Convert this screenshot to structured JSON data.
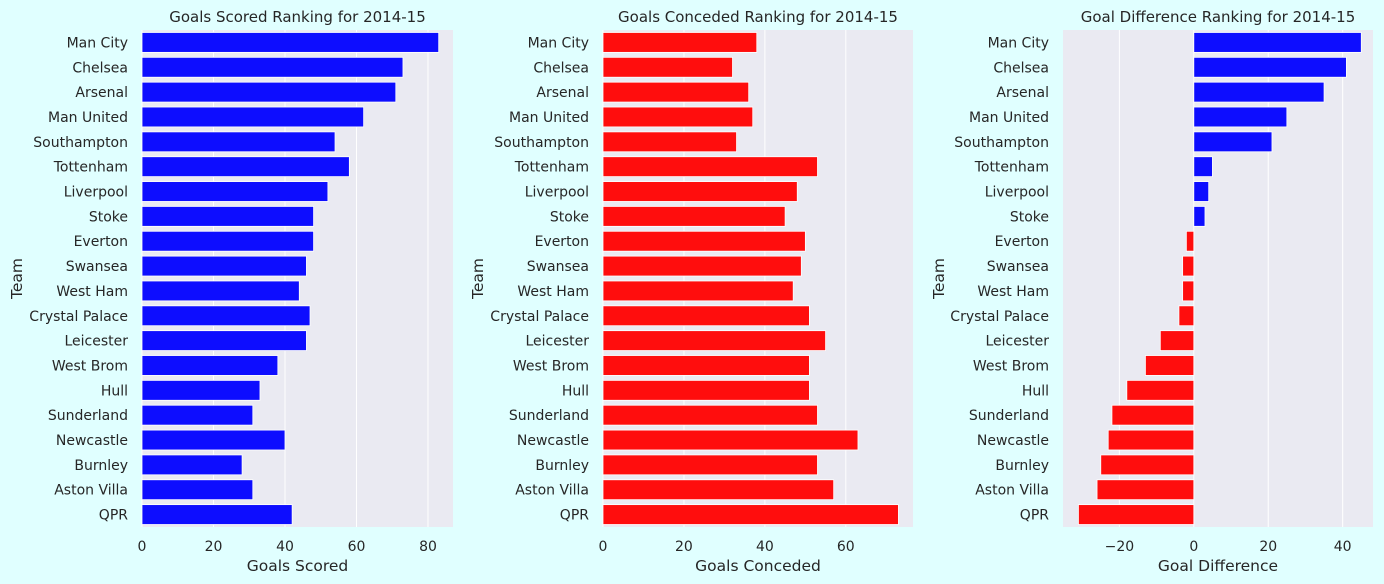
{
  "chart_data": [
    {
      "type": "bar",
      "orientation": "horizontal",
      "title": "Goals Scored Ranking for 2014-15",
      "xlabel": "Goals Scored",
      "ylabel": "Team",
      "xlim": [
        0,
        87
      ],
      "xticks": [
        0,
        20,
        40,
        60,
        80
      ],
      "color": "#0d0dff",
      "grid": true,
      "categories": [
        "Man City",
        "Chelsea",
        "Arsenal",
        "Man United",
        "Southampton",
        "Tottenham",
        "Liverpool",
        "Stoke",
        "Everton",
        "Swansea",
        "West Ham",
        "Crystal Palace",
        "Leicester",
        "West Brom",
        "Hull",
        "Sunderland",
        "Newcastle",
        "Burnley",
        "Aston Villa",
        "QPR"
      ],
      "values": [
        83,
        73,
        71,
        62,
        54,
        58,
        52,
        48,
        48,
        46,
        44,
        47,
        46,
        38,
        33,
        31,
        40,
        28,
        31,
        42
      ]
    },
    {
      "type": "bar",
      "orientation": "horizontal",
      "title": "Goals Conceded Ranking for 2014-15",
      "xlabel": "Goals Conceded",
      "ylabel": "Team",
      "xlim": [
        0,
        76.6
      ],
      "xticks": [
        0,
        20,
        40,
        60
      ],
      "color": "#ff0d0d",
      "grid": true,
      "categories": [
        "Man City",
        "Chelsea",
        "Arsenal",
        "Man United",
        "Southampton",
        "Tottenham",
        "Liverpool",
        "Stoke",
        "Everton",
        "Swansea",
        "West Ham",
        "Crystal Palace",
        "Leicester",
        "West Brom",
        "Hull",
        "Sunderland",
        "Newcastle",
        "Burnley",
        "Aston Villa",
        "QPR"
      ],
      "values": [
        38,
        32,
        36,
        37,
        33,
        53,
        48,
        45,
        50,
        49,
        47,
        51,
        55,
        51,
        51,
        53,
        63,
        53,
        57,
        73
      ]
    },
    {
      "type": "bar",
      "orientation": "horizontal",
      "title": "Goal Difference Ranking for 2014-15",
      "xlabel": "Goal Difference",
      "ylabel": "Team",
      "xlim": [
        -35.15,
        48.15
      ],
      "xticks": [
        -20,
        0,
        20,
        40
      ],
      "color_positive": "#0d0dff",
      "color_negative": "#ff0d0d",
      "grid": true,
      "categories": [
        "Man City",
        "Chelsea",
        "Arsenal",
        "Man United",
        "Southampton",
        "Tottenham",
        "Liverpool",
        "Stoke",
        "Everton",
        "Swansea",
        "West Ham",
        "Crystal Palace",
        "Leicester",
        "West Brom",
        "Hull",
        "Sunderland",
        "Newcastle",
        "Burnley",
        "Aston Villa",
        "QPR"
      ],
      "values": [
        45,
        41,
        35,
        25,
        21,
        5,
        4,
        3,
        -2,
        -3,
        -3,
        -4,
        -9,
        -13,
        -18,
        -22,
        -23,
        -25,
        -26,
        -31
      ]
    }
  ]
}
